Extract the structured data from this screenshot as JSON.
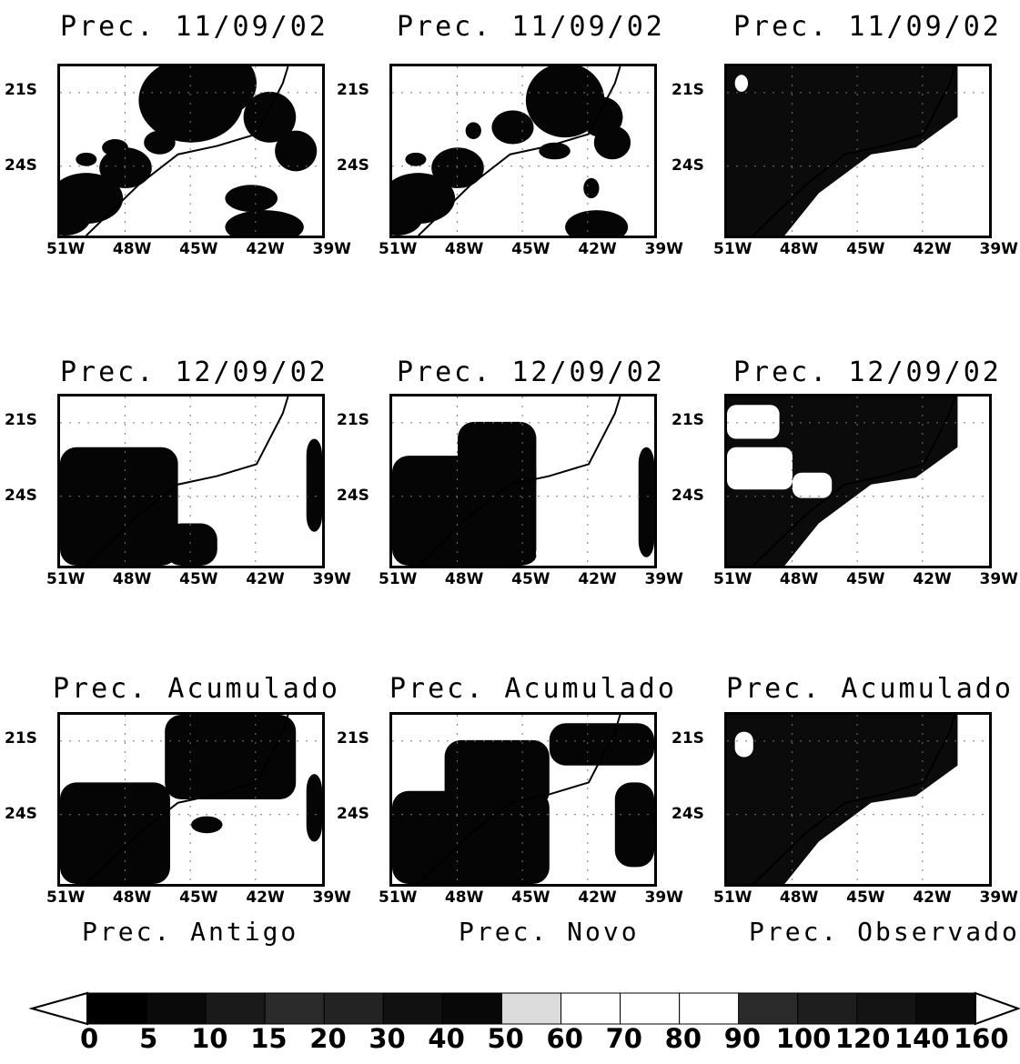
{
  "panels": [
    {
      "title": "Prec. 11/09/02",
      "row": 0,
      "col": 0,
      "pattern": "A1"
    },
    {
      "title": "Prec. 11/09/02",
      "row": 0,
      "col": 1,
      "pattern": "B1"
    },
    {
      "title": "Prec. 11/09/02",
      "row": 0,
      "col": 2,
      "pattern": "C1"
    },
    {
      "title": "Prec. 12/09/02",
      "row": 1,
      "col": 0,
      "pattern": "A2"
    },
    {
      "title": "Prec. 12/09/02",
      "row": 1,
      "col": 1,
      "pattern": "B2"
    },
    {
      "title": "Prec. 12/09/02",
      "row": 1,
      "col": 2,
      "pattern": "C2"
    },
    {
      "title": "Prec. Acumulado",
      "row": 2,
      "col": 0,
      "pattern": "A3"
    },
    {
      "title": "Prec. Acumulado",
      "row": 2,
      "col": 1,
      "pattern": "B3"
    },
    {
      "title": "Prec. Acumulado",
      "row": 2,
      "col": 2,
      "pattern": "C3"
    }
  ],
  "axes": {
    "lat_labels": [
      "21S",
      "24S"
    ],
    "lon_labels": [
      "51W",
      "48W",
      "45W",
      "42W",
      "39W"
    ]
  },
  "column_labels": [
    "Prec. Antigo",
    "Prec. Novo",
    "Prec. Observado"
  ],
  "colorbar": {
    "levels": [
      "0",
      "5",
      "10",
      "15",
      "20",
      "30",
      "40",
      "50",
      "60",
      "70",
      "80",
      "90",
      "100",
      "120",
      "140",
      "160"
    ],
    "colors": [
      "#000000",
      "#0a0a0a",
      "#1a1a1a",
      "#2b2b2b",
      "#232323",
      "#111111",
      "#080808",
      "#dcdcdc",
      "#ffffff",
      "#ffffff",
      "#ffffff",
      "#2a2a2a",
      "#1e1e1e",
      "#141414",
      "#0a0a0a"
    ]
  }
}
